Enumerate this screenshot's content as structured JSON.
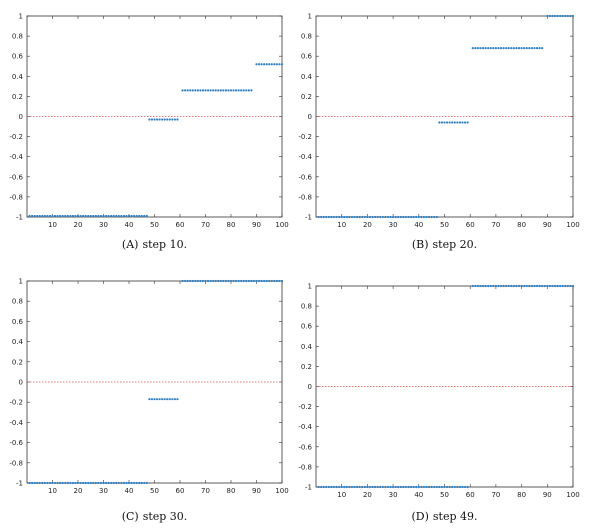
{
  "chart_data": [
    {
      "type": "scatter",
      "caption_label": "(A)",
      "caption_text": "step 10.",
      "xlim": [
        0,
        100
      ],
      "ylim": [
        -1,
        1
      ],
      "x_ticks": [
        10,
        20,
        30,
        40,
        50,
        60,
        70,
        80,
        90,
        100
      ],
      "y_ticks": [
        -1,
        -0.8,
        -0.6,
        -0.4,
        -0.2,
        0,
        0.2,
        0.4,
        0.6,
        0.8,
        1
      ],
      "y_tick_labels": [
        "-1",
        "-0.8",
        "-0.6",
        "-0.4",
        "-0.2",
        "0",
        "0.2",
        "0.4",
        "0.6",
        "0.8",
        "1"
      ],
      "reference_line_y": 0,
      "segments": [
        {
          "x_start": 1,
          "x_end": 47,
          "y": -0.99
        },
        {
          "x_start": 48,
          "x_end": 59,
          "y": -0.03
        },
        {
          "x_start": 61,
          "x_end": 88,
          "y": 0.26
        },
        {
          "x_start": 90,
          "x_end": 100,
          "y": 0.52
        }
      ]
    },
    {
      "type": "scatter",
      "caption_label": "(B)",
      "caption_text": "step 20.",
      "xlim": [
        0,
        100
      ],
      "ylim": [
        -1,
        1
      ],
      "x_ticks": [
        10,
        20,
        30,
        40,
        50,
        60,
        70,
        80,
        90,
        100
      ],
      "y_ticks": [
        -1,
        -0.8,
        -0.6,
        -0.4,
        -0.2,
        0,
        0.2,
        0.4,
        0.6,
        0.8,
        1
      ],
      "y_tick_labels": [
        "-1",
        "-0.8",
        "-0.6",
        "-0.4",
        "-0.2",
        "0",
        "0.2",
        "0.4",
        "0.6",
        "0.8",
        "1"
      ],
      "reference_line_y": 0,
      "segments": [
        {
          "x_start": 1,
          "x_end": 47,
          "y": -1
        },
        {
          "x_start": 48,
          "x_end": 59,
          "y": -0.06
        },
        {
          "x_start": 61,
          "x_end": 88,
          "y": 0.68
        },
        {
          "x_start": 90,
          "x_end": 100,
          "y": 1
        }
      ]
    },
    {
      "type": "scatter",
      "caption_label": "(C)",
      "caption_text": "step 30.",
      "xlim": [
        0,
        100
      ],
      "ylim": [
        -1,
        1
      ],
      "x_ticks": [
        10,
        20,
        30,
        40,
        50,
        60,
        70,
        80,
        90,
        100
      ],
      "y_ticks": [
        -1,
        -0.8,
        -0.6,
        -0.4,
        -0.2,
        0,
        0.2,
        0.4,
        0.6,
        0.8,
        1
      ],
      "y_tick_labels": [
        "-1",
        "-0.8",
        "-0.6",
        "-0.4",
        "-0.2",
        "0",
        "0.2",
        "0.4",
        "0.6",
        "0.8",
        "1"
      ],
      "reference_line_y": 0,
      "segments": [
        {
          "x_start": 1,
          "x_end": 47,
          "y": -1
        },
        {
          "x_start": 48,
          "x_end": 59,
          "y": -0.17
        },
        {
          "x_start": 61,
          "x_end": 100,
          "y": 1
        }
      ]
    },
    {
      "type": "scatter",
      "caption_label": "(D)",
      "caption_text": "step 49.",
      "xlim": [
        0,
        100
      ],
      "ylim": [
        -1,
        1
      ],
      "x_ticks": [
        10,
        20,
        30,
        40,
        50,
        60,
        70,
        80,
        90,
        100
      ],
      "y_ticks": [
        -1,
        -0.8,
        -0.6,
        -0.4,
        -0.2,
        0,
        0.2,
        0.4,
        0.6,
        0.8,
        1
      ],
      "y_tick_labels": [
        "-1",
        "-0.8",
        "-0.6",
        "-0.4",
        "-0.2",
        "0",
        "0.2",
        "0.4",
        "0.6",
        "0.8",
        "1"
      ],
      "reference_line_y": 0,
      "segments": [
        {
          "x_start": 1,
          "x_end": 59,
          "y": -1
        },
        {
          "x_start": 61,
          "x_end": 100,
          "y": 1
        }
      ]
    }
  ],
  "colors": {
    "points": "#2f7fc1",
    "reference_line": "#d9534f",
    "frame": "#333333"
  }
}
